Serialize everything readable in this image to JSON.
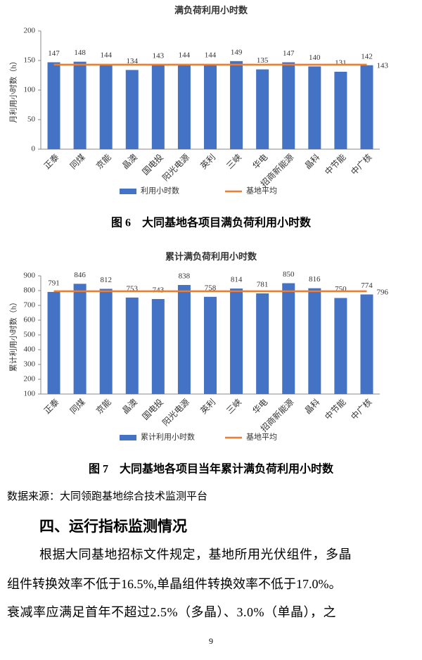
{
  "chart_data": [
    {
      "type": "bar",
      "title": "满负荷利用小时数",
      "caption": "图 6　大同基地各项目满负荷利用小时数",
      "y_label": "月利用小时数（h）",
      "categories": [
        "正泰",
        "同煤",
        "京能",
        "晶澳",
        "国电投",
        "阳光电源",
        "英利",
        "三峡",
        "华电",
        "招商新能源",
        "晶科",
        "中节能",
        "中广核"
      ],
      "series": [
        {
          "name": "利用小时数",
          "color": "#4472c4",
          "values": [
            147,
            148,
            144,
            134,
            143,
            144,
            144,
            149,
            135,
            147,
            140,
            131,
            142
          ]
        },
        {
          "name": "基地平均",
          "color": "#ed7d31",
          "type": "line",
          "values": [
            143,
            143,
            143,
            143,
            143,
            143,
            143,
            143,
            143,
            143,
            143,
            143,
            143
          ]
        }
      ],
      "ylim": [
        0,
        200
      ],
      "yticks": [
        0,
        50,
        100,
        150,
        200
      ]
    },
    {
      "type": "bar",
      "title": "累计满负荷利用小时数",
      "caption": "图 7　大同基地各项目当年累计满负荷利用小时数",
      "y_label": "累计利用小时数（h）",
      "categories": [
        "正泰",
        "同煤",
        "京能",
        "晶澳",
        "国电投",
        "阳光电源",
        "英利",
        "三峡",
        "华电",
        "招商新能源",
        "晶科",
        "中节能",
        "中广核"
      ],
      "series": [
        {
          "name": "累计利用小时数",
          "color": "#4472c4",
          "values": [
            791,
            846,
            812,
            753,
            743,
            838,
            758,
            814,
            781,
            850,
            816,
            750,
            774
          ]
        },
        {
          "name": "基地平均",
          "color": "#ed7d31",
          "type": "line",
          "values": [
            796,
            796,
            796,
            796,
            796,
            796,
            796,
            796,
            796,
            796,
            796,
            796,
            796
          ]
        }
      ],
      "ylim": [
        100,
        900
      ],
      "yticks": [
        100,
        200,
        300,
        400,
        500,
        600,
        700,
        800,
        900
      ]
    }
  ],
  "source": "数据来源：大同领跑基地综合技术监测平台",
  "section_title": "四、运行指标监测情况",
  "paragraph": [
    "根据大同基地招标文件规定，基地所用光伏组件，多晶",
    "组件转换效率不低于16.5%,单晶组件转换效率不低于17.0%。",
    "衰减率应满足首年不超过2.5%（多晶）、3.0%（单晶），之"
  ],
  "page_number": 9
}
